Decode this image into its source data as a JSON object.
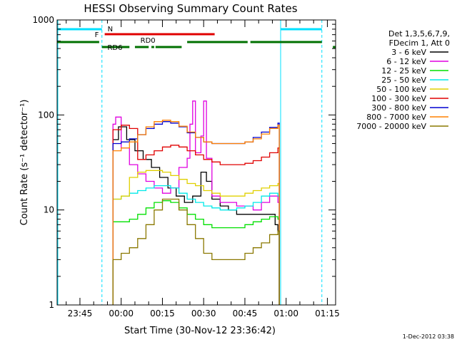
{
  "chart_data": {
    "type": "line",
    "title": "HESSI Observing Summary Count Rates",
    "xlabel": "Start Time (30-Nov-12 23:36:42)",
    "ylabel": "Count Rate (s⁻¹ detector⁻¹)",
    "x_start": "23:36:42",
    "x_end": "01:18:00",
    "x_tick_labels": [
      "23:45",
      "00:00",
      "00:15",
      "00:30",
      "00:45",
      "01:00",
      "01:15"
    ],
    "y_scale": "log",
    "ylim": [
      1,
      1000
    ],
    "y_tick_labels": [
      "1",
      "10",
      "100",
      "1000"
    ],
    "grid": false,
    "legend_position": "right",
    "legend_header": [
      "Det 1,3,5,6,7,9,",
      "FDecim 1, Att 0"
    ],
    "date_stamp": "1-Dec-2012 03:38",
    "flag_labels": {
      "night": "N",
      "flare": "F",
      "rd0": "RD0",
      "rd6": "RD6"
    },
    "colors": {
      "3-6": "#000000",
      "6-12": "#e000e0",
      "12-25": "#00e000",
      "25-50": "#00e8e8",
      "50-100": "#e0d000",
      "100-300": "#e00000",
      "300-800": "#0000d0",
      "800-7000": "#ff8000",
      "7000-20000": "#8a7800",
      "night": "#00e0ff",
      "flare": "#e00000",
      "rd": "#007000"
    },
    "series": [
      {
        "name": "3 - 6 keV",
        "key": "3-6",
        "times": [
          "23:57",
          "23:59",
          "00:02",
          "00:05",
          "00:08",
          "00:11",
          "00:14",
          "00:17",
          "00:20",
          "00:23",
          "00:26",
          "00:29",
          "00:31",
          "00:33",
          "00:36",
          "00:39",
          "00:42",
          "00:45",
          "00:48",
          "00:51",
          "00:54",
          "00:56",
          "00:57"
        ],
        "values": [
          55,
          75,
          55,
          42,
          34,
          28,
          22,
          17,
          14,
          12,
          14,
          25,
          20,
          13,
          11,
          10,
          9,
          9,
          9,
          9,
          9,
          7,
          6
        ]
      },
      {
        "name": "6 - 12 keV",
        "key": "6-12",
        "times": [
          "23:57",
          "23:58",
          "00:00",
          "00:03",
          "00:06",
          "00:09",
          "00:12",
          "00:15",
          "00:18",
          "00:21",
          "00:24",
          "00:25",
          "00:26",
          "00:27",
          "00:29",
          "00:30",
          "00:31",
          "00:33",
          "00:36",
          "00:39",
          "00:42",
          "00:45",
          "00:48",
          "00:51",
          "00:54",
          "00:57"
        ],
        "values": [
          80,
          95,
          45,
          30,
          24,
          20,
          17,
          15,
          17,
          28,
          35,
          80,
          140,
          40,
          60,
          140,
          35,
          14,
          12,
          12,
          11,
          11,
          10,
          12,
          14,
          12
        ]
      },
      {
        "name": "12 - 25 keV",
        "key": "12-25",
        "times": [
          "23:57",
          "00:00",
          "00:03",
          "00:06",
          "00:09",
          "00:12",
          "00:15",
          "00:18",
          "00:21",
          "00:24",
          "00:27",
          "00:30",
          "00:33",
          "00:36",
          "00:39",
          "00:42",
          "00:45",
          "00:48",
          "00:51",
          "00:54",
          "00:57"
        ],
        "values": [
          7.5,
          7.5,
          8,
          9,
          10.5,
          12,
          12.5,
          12,
          10.5,
          9,
          8,
          7,
          6.5,
          6.5,
          6.5,
          6.5,
          7,
          7.5,
          8,
          8.5,
          8
        ]
      },
      {
        "name": "25 - 50 keV",
        "key": "25-50",
        "times": [
          "23:57",
          "00:00",
          "00:03",
          "00:06",
          "00:09",
          "00:12",
          "00:15",
          "00:18",
          "00:21",
          "00:24",
          "00:27",
          "00:30",
          "00:33",
          "00:36",
          "00:39",
          "00:42",
          "00:45",
          "00:48",
          "00:51",
          "00:54",
          "00:57"
        ],
        "values": [
          13,
          14,
          15,
          16,
          17,
          18,
          18,
          17,
          15,
          13,
          12,
          11,
          10.5,
          10,
          10,
          10.5,
          11,
          12,
          14,
          15,
          14
        ]
      },
      {
        "name": "50 - 100 keV",
        "key": "50-100",
        "times": [
          "23:57",
          "00:00",
          "00:03",
          "00:06",
          "00:09",
          "00:12",
          "00:15",
          "00:18",
          "00:21",
          "00:24",
          "00:27",
          "00:30",
          "00:33",
          "00:36",
          "00:39",
          "00:42",
          "00:45",
          "00:48",
          "00:51",
          "00:54",
          "00:57"
        ],
        "values": [
          13,
          14,
          22,
          25,
          26,
          26,
          25,
          23,
          21,
          19,
          18,
          16,
          15,
          14,
          14,
          14,
          15,
          16,
          17,
          18,
          19
        ]
      },
      {
        "name": "100 - 300 keV",
        "key": "100-300",
        "times": [
          "23:57",
          "00:00",
          "00:03",
          "00:06",
          "00:09",
          "00:12",
          "00:15",
          "00:18",
          "00:21",
          "00:24",
          "00:27",
          "00:30",
          "00:33",
          "00:36",
          "00:39",
          "00:42",
          "00:45",
          "00:48",
          "00:51",
          "00:54",
          "00:57"
        ],
        "values": [
          70,
          78,
          72,
          34,
          38,
          42,
          46,
          48,
          46,
          42,
          38,
          34,
          32,
          30,
          30,
          30,
          31,
          33,
          36,
          40,
          45
        ]
      },
      {
        "name": "300 - 800 keV",
        "key": "300-800",
        "times": [
          "23:57",
          "00:00",
          "00:03",
          "00:06",
          "00:09",
          "00:12",
          "00:15",
          "00:18",
          "00:21",
          "00:24",
          "00:27",
          "00:30",
          "00:33",
          "00:36",
          "00:39",
          "00:42",
          "00:45",
          "00:48",
          "00:51",
          "00:54",
          "00:57"
        ],
        "values": [
          50,
          52,
          56,
          62,
          72,
          80,
          85,
          82,
          75,
          65,
          58,
          52,
          50,
          50,
          50,
          50,
          52,
          58,
          66,
          74,
          82
        ]
      },
      {
        "name": "800 - 7000 keV",
        "key": "800-7000",
        "times": [
          "23:57",
          "00:00",
          "00:03",
          "00:06",
          "00:09",
          "00:12",
          "00:15",
          "00:18",
          "00:21",
          "00:24",
          "00:27",
          "00:30",
          "00:33",
          "00:36",
          "00:39",
          "00:42",
          "00:45",
          "00:48",
          "00:51",
          "00:54",
          "00:57"
        ],
        "values": [
          42,
          45,
          52,
          62,
          75,
          85,
          88,
          85,
          76,
          66,
          58,
          52,
          50,
          50,
          50,
          50,
          52,
          56,
          63,
          72,
          78
        ]
      },
      {
        "name": "7000 - 20000 keV",
        "key": "7000-20000",
        "times": [
          "23:57",
          "00:00",
          "00:03",
          "00:06",
          "00:09",
          "00:12",
          "00:15",
          "00:18",
          "00:21",
          "00:24",
          "00:27",
          "00:30",
          "00:33",
          "00:36",
          "00:39",
          "00:42",
          "00:45",
          "00:48",
          "00:51",
          "00:54",
          "00:57"
        ],
        "values": [
          3,
          3.5,
          4,
          5,
          7,
          10,
          13,
          13,
          10,
          7,
          5,
          3.5,
          3,
          3,
          3,
          3,
          3.5,
          4,
          4.5,
          5.5,
          6
        ]
      }
    ],
    "night_intervals": [
      [
        "23:36:42",
        "23:53:00"
      ],
      [
        "00:58:00",
        "01:13:00"
      ]
    ],
    "flare_intervals": [
      [
        "23:54:00",
        "00:34:00"
      ]
    ],
    "rd_intervals": [
      [
        "23:36:42",
        "23:52:00"
      ],
      [
        "23:53:00",
        "00:03:00"
      ],
      [
        "00:05:00",
        "00:10:00"
      ],
      [
        "00:11:00",
        "00:12:00"
      ],
      [
        "00:12:30",
        "00:22:00"
      ],
      [
        "00:24:00",
        "00:46:00"
      ],
      [
        "00:47:00",
        "01:13:00"
      ],
      [
        "01:17:00",
        "01:18:00"
      ]
    ],
    "vlines_dashed": [
      "23:53:00",
      "01:13:00"
    ],
    "vlines_solid": [
      "00:58:00"
    ]
  }
}
